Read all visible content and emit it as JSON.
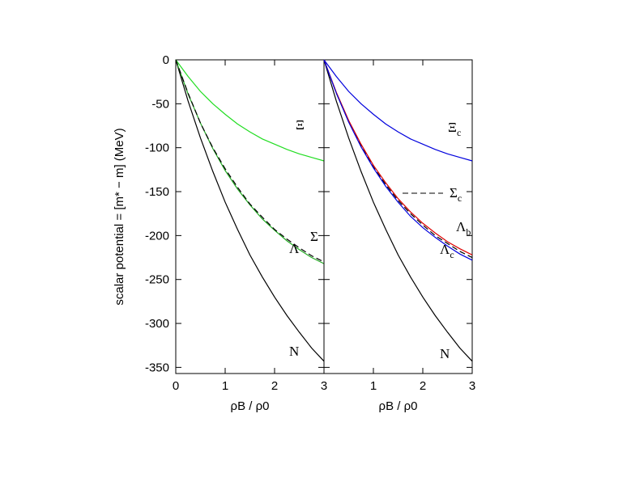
{
  "chart_data": [
    {
      "type": "line",
      "ylabel": "scalar potential = [m* − m] (MeV)",
      "xlabel": "ρB / ρ0",
      "x": [
        0,
        0.25,
        0.5,
        0.75,
        1,
        1.25,
        1.5,
        1.75,
        2,
        2.25,
        2.5,
        2.75,
        3
      ],
      "xlim": [
        0,
        3
      ],
      "ylim": [
        -357,
        0
      ],
      "xticks": [
        0,
        1,
        2,
        3
      ],
      "yticks": [
        0,
        -50,
        -100,
        -150,
        -200,
        -250,
        -300,
        -350
      ],
      "show_ytick_labels": true,
      "series": [
        {
          "name": "N",
          "color": "#000000",
          "dashed": false,
          "values": [
            0,
            -47,
            -89,
            -127,
            -162,
            -193,
            -222,
            -247,
            -270,
            -291,
            -310,
            -328,
            -343
          ]
        },
        {
          "name": "Ξ",
          "color": "#22dd22",
          "dashed": false,
          "values": [
            0,
            -19,
            -36,
            -50,
            -62,
            -73,
            -82,
            -90,
            -96,
            -102,
            -107,
            -111,
            -115
          ]
        },
        {
          "name": "Σ",
          "color": "#22aa22",
          "dashed": false,
          "values": [
            0,
            -39,
            -72,
            -101,
            -126,
            -147,
            -165,
            -181,
            -194,
            -206,
            -216,
            -225,
            -232
          ]
        },
        {
          "name": "Λ",
          "color": "#000000",
          "dashed": true,
          "values": [
            0,
            -38,
            -72,
            -100,
            -124,
            -145,
            -164,
            -179,
            -193,
            -204,
            -214,
            -223,
            -230
          ]
        }
      ]
    },
    {
      "type": "line",
      "xlabel": "ρB / ρ0",
      "x": [
        0,
        0.25,
        0.5,
        0.75,
        1,
        1.25,
        1.5,
        1.75,
        2,
        2.25,
        2.5,
        2.75,
        3
      ],
      "xlim": [
        0,
        3
      ],
      "ylim": [
        -357,
        0
      ],
      "xticks": [
        1,
        2,
        3
      ],
      "yticks": [
        0,
        -50,
        -100,
        -150,
        -200,
        -250,
        -300,
        -350
      ],
      "show_ytick_labels": false,
      "series": [
        {
          "name": "N",
          "color": "#000000",
          "dashed": false,
          "values": [
            0,
            -47,
            -89,
            -127,
            -162,
            -193,
            -222,
            -247,
            -270,
            -291,
            -310,
            -328,
            -343
          ]
        },
        {
          "name": "Ξ",
          "name_sub": "c",
          "color": "#0000dd",
          "dashed": false,
          "values": [
            0,
            -19,
            -36,
            -50,
            -62,
            -73,
            -82,
            -90,
            -96,
            -102,
            -107,
            -111,
            -115
          ]
        },
        {
          "name": "Σ",
          "name_sub": "c",
          "color": "#000000",
          "dashed": true,
          "values": [
            0,
            -38,
            -70,
            -98,
            -122,
            -142,
            -160,
            -175,
            -188,
            -200,
            -209,
            -218,
            -225
          ]
        },
        {
          "name": "Λ",
          "name_sub": "b",
          "color": "#dd0000",
          "dashed": false,
          "values": [
            0,
            -37,
            -69,
            -96,
            -120,
            -140,
            -158,
            -173,
            -186,
            -197,
            -207,
            -215,
            -222
          ]
        },
        {
          "name": "Λ",
          "name_sub": "c",
          "color": "#0000dd",
          "dashed": false,
          "values": [
            0,
            -38,
            -71,
            -99,
            -123,
            -144,
            -162,
            -178,
            -191,
            -202,
            -212,
            -221,
            -228
          ]
        }
      ]
    }
  ]
}
